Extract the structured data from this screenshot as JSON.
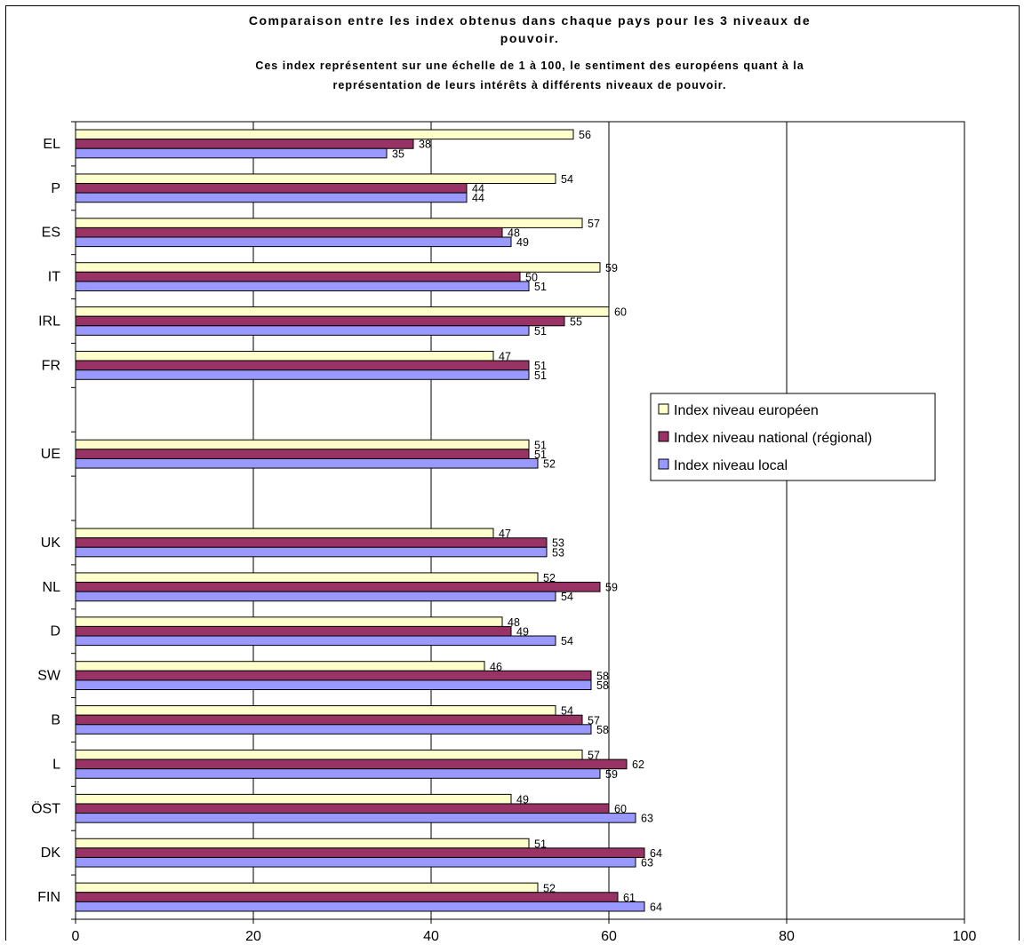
{
  "chart_data": {
    "type": "bar",
    "orientation": "horizontal",
    "title_lines": [
      "Comparaison entre les index obtenus dans chaque pays pour les 3 niveaux de",
      "pouvoir."
    ],
    "subtitle_lines": [
      "Ces index représentent sur une échelle de 1 à 100, le sentiment des européens quant à la",
      "représentation de leurs intérêts à différents niveaux de pouvoir."
    ],
    "categories": [
      "EL",
      "P",
      "ES",
      "IT",
      "IRL",
      "FR",
      "",
      "UE",
      "",
      "UK",
      "NL",
      "D",
      "SW",
      "B",
      "L",
      "ÖST",
      "DK",
      "FIN"
    ],
    "series": [
      {
        "name": "Index niveau européen",
        "color": "#ffffcc",
        "values": [
          56,
          54,
          57,
          59,
          60,
          47,
          null,
          51,
          null,
          47,
          52,
          48,
          46,
          54,
          57,
          49,
          51,
          52
        ]
      },
      {
        "name": "Index niveau national (régional)",
        "color": "#993366",
        "values": [
          38,
          44,
          48,
          50,
          55,
          51,
          null,
          51,
          null,
          53,
          59,
          49,
          58,
          57,
          62,
          60,
          64,
          61
        ]
      },
      {
        "name": "Index niveau local",
        "color": "#9999ff",
        "values": [
          35,
          44,
          49,
          51,
          51,
          51,
          null,
          52,
          null,
          53,
          54,
          54,
          58,
          58,
          59,
          63,
          63,
          64
        ]
      }
    ],
    "xlim": [
      0,
      100
    ],
    "xticks": [
      "0",
      "20",
      "40",
      "60",
      "80",
      "100"
    ],
    "grid": "vertical",
    "legend_position": "right"
  }
}
